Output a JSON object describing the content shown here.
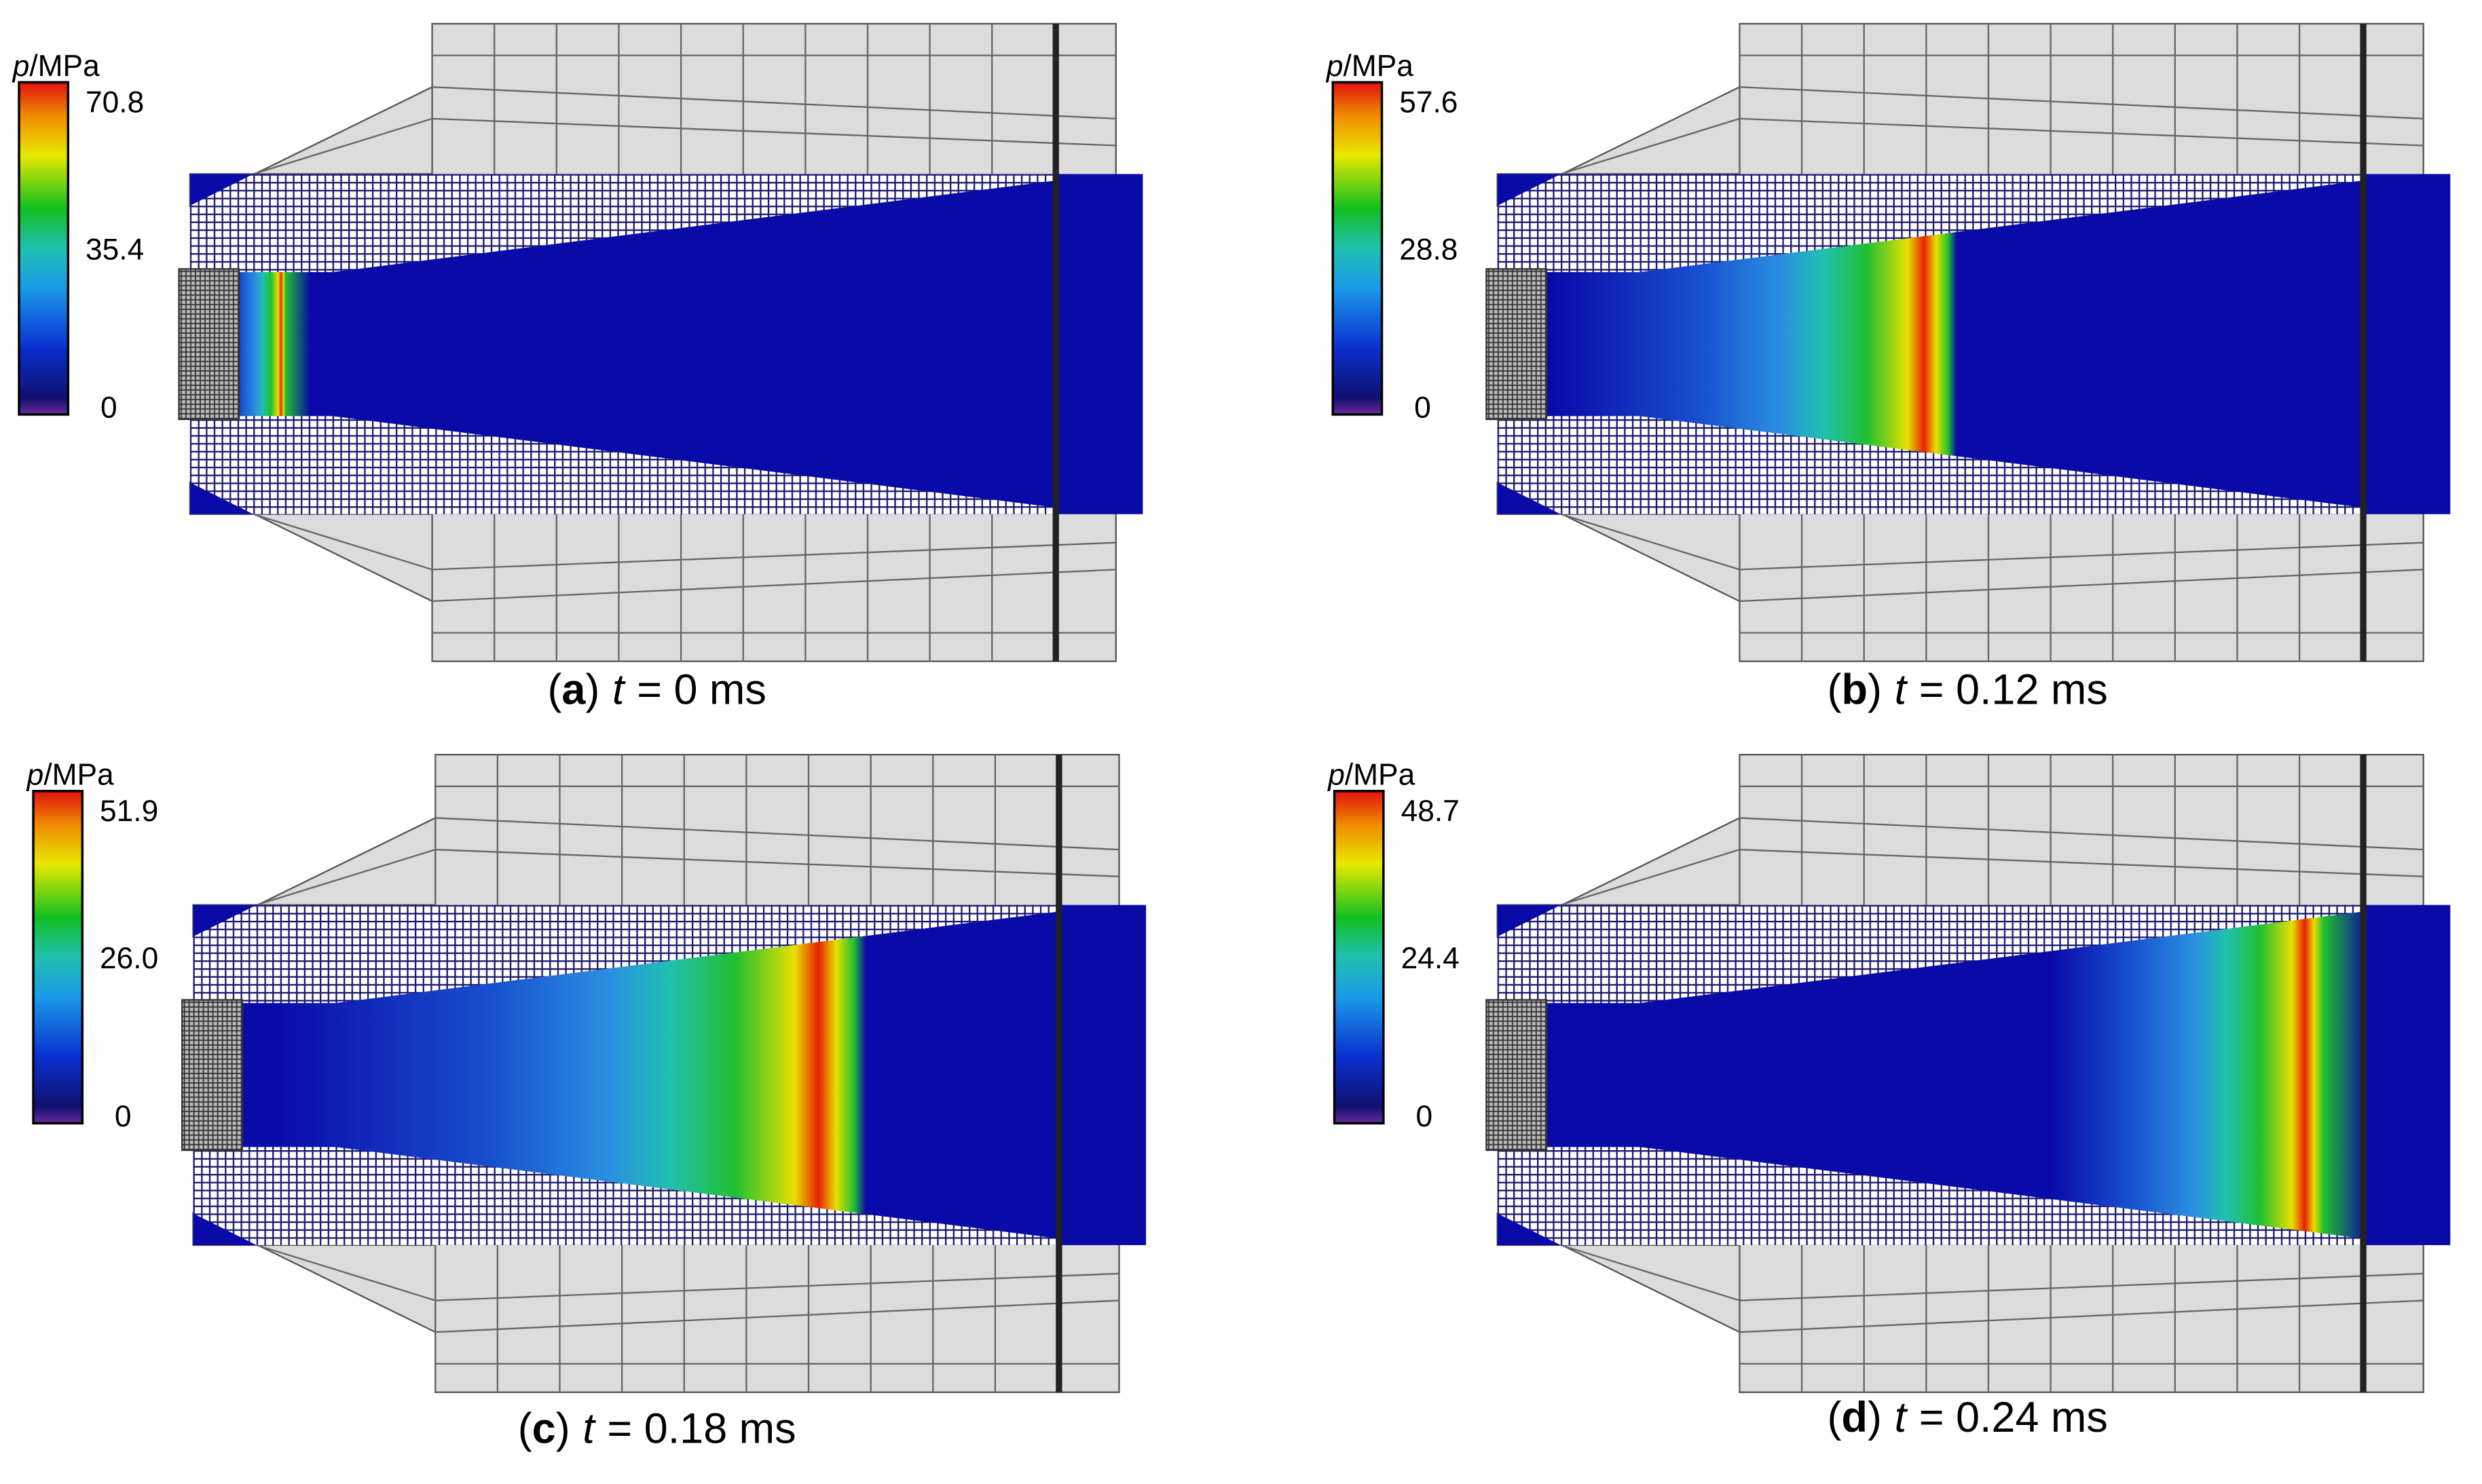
{
  "panels": [
    {
      "caption": {
        "open": "(",
        "letter": "a",
        "close": ")",
        "variable": "t",
        "rest": "= 0 ms"
      },
      "colorbar": {
        "symbol": "p",
        "unit": "/MPa",
        "max": "70.8",
        "mid": "35.4",
        "min": "0"
      }
    },
    {
      "caption": {
        "open": "(",
        "letter": "b",
        "close": ")",
        "variable": "t",
        "rest": "= 0.12 ms"
      },
      "colorbar": {
        "symbol": "p",
        "unit": "/MPa",
        "max": "57.6",
        "mid": "28.8",
        "min": "0"
      }
    },
    {
      "caption": {
        "open": "(",
        "letter": "c",
        "close": ")",
        "variable": "t",
        "rest": "= 0.18 ms"
      },
      "colorbar": {
        "symbol": "p",
        "unit": "/MPa",
        "max": "51.9",
        "mid": "26.0",
        "min": "0"
      }
    },
    {
      "caption": {
        "open": "(",
        "letter": "d",
        "close": ")",
        "variable": "t",
        "rest": "= 0.24 ms"
      },
      "colorbar": {
        "symbol": "p",
        "unit": "/MPa",
        "max": "48.7",
        "mid": "24.4",
        "min": "0"
      }
    }
  ]
}
